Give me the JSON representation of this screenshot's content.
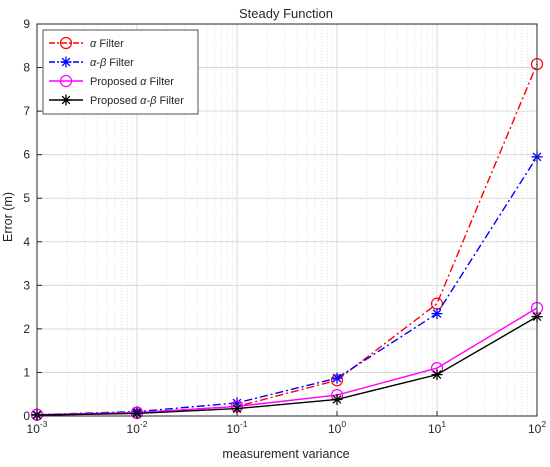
{
  "chart_data": {
    "type": "line",
    "title": "Steady Function",
    "xlabel": "measurement variance",
    "ylabel": "Error (m)",
    "xscale": "log",
    "xlim": [
      0.001,
      100
    ],
    "ylim": [
      0,
      9
    ],
    "grid": true,
    "legend_position": "top-left",
    "x": [
      0.001,
      0.01,
      0.1,
      1,
      10,
      100
    ],
    "x_tick_labels": [
      {
        "base": "10",
        "exp": "-3"
      },
      {
        "base": "10",
        "exp": "-2"
      },
      {
        "base": "10",
        "exp": "-1"
      },
      {
        "base": "10",
        "exp": "0"
      },
      {
        "base": "10",
        "exp": "1"
      },
      {
        "base": "10",
        "exp": "2"
      }
    ],
    "y_ticks": [
      0,
      1,
      2,
      3,
      4,
      5,
      6,
      7,
      8,
      9
    ],
    "y_tick_labels": [
      "0",
      "1",
      "2",
      "3",
      "4",
      "5",
      "6",
      "7",
      "8",
      "9"
    ],
    "series": [
      {
        "name": "α Filter",
        "label_parts": [
          {
            "t": "α",
            "i": true
          },
          {
            "t": " Filter",
            "i": false
          }
        ],
        "values": [
          0.03,
          0.07,
          0.22,
          0.82,
          2.58,
          8.08
        ],
        "color": "#ff0000",
        "line": "dashdot",
        "marker": "circle"
      },
      {
        "name": "α-β Filter",
        "label_parts": [
          {
            "t": "α",
            "i": true
          },
          {
            "t": "-",
            "i": false
          },
          {
            "t": "β",
            "i": true
          },
          {
            "t": " Filter",
            "i": false
          }
        ],
        "values": [
          0.03,
          0.1,
          0.3,
          0.87,
          2.35,
          5.95
        ],
        "color": "#0000ff",
        "line": "dashdot",
        "marker": "asterisk"
      },
      {
        "name": "Proposed α Filter",
        "label_parts": [
          {
            "t": "Proposed ",
            "i": false
          },
          {
            "t": "α",
            "i": true
          },
          {
            "t": " Filter",
            "i": false
          }
        ],
        "values": [
          0.03,
          0.08,
          0.22,
          0.48,
          1.1,
          2.48
        ],
        "color": "#ff00ff",
        "line": "solid",
        "marker": "circle"
      },
      {
        "name": "Proposed α-β Filter",
        "label_parts": [
          {
            "t": "Proposed ",
            "i": false
          },
          {
            "t": "α",
            "i": true
          },
          {
            "t": "-",
            "i": false
          },
          {
            "t": "β",
            "i": true
          },
          {
            "t": " Filter",
            "i": false
          }
        ],
        "values": [
          0.02,
          0.06,
          0.17,
          0.38,
          0.95,
          2.28
        ],
        "color": "#000000",
        "line": "solid",
        "marker": "asterisk"
      }
    ]
  }
}
